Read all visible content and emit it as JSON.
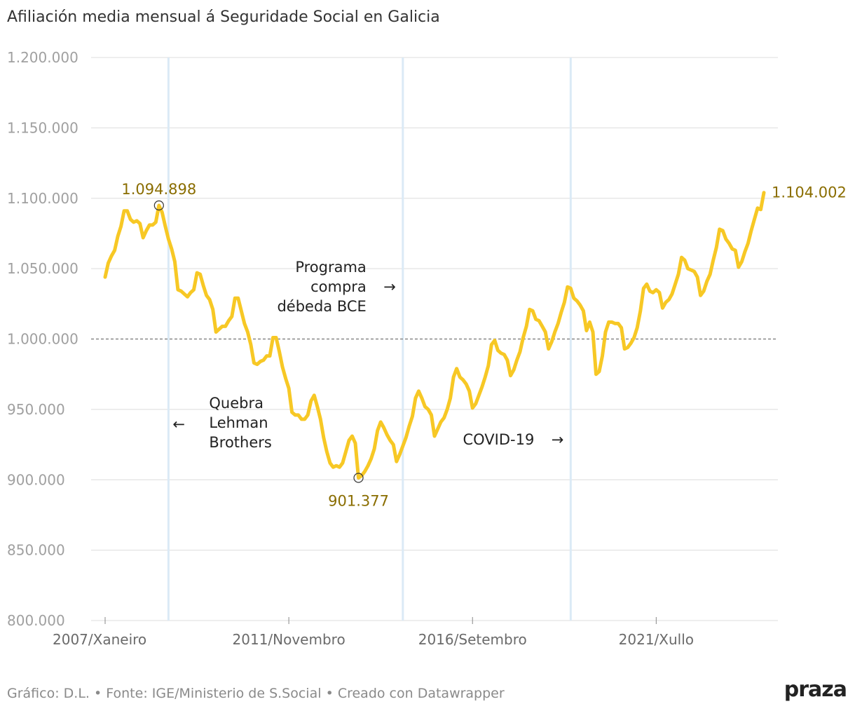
{
  "title": "Afiliación media mensual á Seguridade Social en Galicia",
  "footer": {
    "credit": "Gráfico: D.L.",
    "source": "Fonte: IGE/Ministerio de S.Social",
    "tool": "Creado con Datawrapper",
    "separator": "•"
  },
  "logo": "praza",
  "colors": {
    "line": "#F7C825",
    "event_line": "#dbeaf6",
    "grid": "#e3e3e3",
    "reference": "#888888",
    "value_label": "#8a6d00"
  },
  "chart_data": {
    "type": "line",
    "title": "Afiliación media mensual á Seguridade Social en Galicia",
    "xlabel": "",
    "ylabel": "",
    "ylim": [
      800000,
      1200000
    ],
    "yticks": [
      800000,
      850000,
      900000,
      950000,
      1000000,
      1050000,
      1100000,
      1150000,
      1200000
    ],
    "ytick_labels": [
      "800.000",
      "850.000",
      "900.000",
      "950.000",
      "1.000.000",
      "1.050.000",
      "1.100.000",
      "1.150.000",
      "1.200.000"
    ],
    "x_index_range": [
      0,
      208
    ],
    "xticks": [
      {
        "index": 0,
        "label": "2007/Xaneiro"
      },
      {
        "index": 58,
        "label": "2011/Novembro"
      },
      {
        "index": 116,
        "label": "2016/Setembro"
      },
      {
        "index": 174,
        "label": "2021/Xullo"
      }
    ],
    "reference_line": 1000000,
    "events": [
      {
        "index": 20,
        "label": [
          "Quebra",
          "Lehman",
          "Brothers"
        ],
        "arrow": "←",
        "side": "right"
      },
      {
        "index": 94,
        "label": [
          "Programa",
          "compra",
          "débeda BCE"
        ],
        "arrow": "→",
        "side": "left"
      },
      {
        "index": 147,
        "label": [
          "COVID-19"
        ],
        "arrow": "→",
        "side": "left"
      }
    ],
    "highlights": [
      {
        "index": 17,
        "value": 1094898,
        "label": "1.094.898",
        "position": "above",
        "marker": true
      },
      {
        "index": 80,
        "value": 901377,
        "label": "901.377",
        "position": "below",
        "marker": true
      },
      {
        "index": 208,
        "value": 1104002,
        "label": "1.104.002",
        "position": "right",
        "marker": false
      }
    ],
    "series": [
      {
        "name": "Afiliación media mensual",
        "points": [
          [
            0,
            1044000
          ],
          [
            1,
            1054000
          ],
          [
            2,
            1059000
          ],
          [
            3,
            1063000
          ],
          [
            4,
            1073000
          ],
          [
            5,
            1080000
          ],
          [
            6,
            1091000
          ],
          [
            7,
            1091000
          ],
          [
            8,
            1085000
          ],
          [
            9,
            1083000
          ],
          [
            10,
            1084000
          ],
          [
            11,
            1082000
          ],
          [
            12,
            1072000
          ],
          [
            13,
            1077000
          ],
          [
            14,
            1081000
          ],
          [
            15,
            1081000
          ],
          [
            16,
            1083000
          ],
          [
            17,
            1094898
          ],
          [
            18,
            1090000
          ],
          [
            19,
            1080000
          ],
          [
            20,
            1071000
          ],
          [
            21,
            1064000
          ],
          [
            22,
            1055000
          ],
          [
            23,
            1035000
          ],
          [
            24,
            1034000
          ],
          [
            25,
            1032000
          ],
          [
            26,
            1030000
          ],
          [
            27,
            1033000
          ],
          [
            28,
            1035000
          ],
          [
            29,
            1047000
          ],
          [
            30,
            1046000
          ],
          [
            31,
            1038000
          ],
          [
            32,
            1031000
          ],
          [
            33,
            1028000
          ],
          [
            34,
            1021000
          ],
          [
            35,
            1005000
          ],
          [
            36,
            1007000
          ],
          [
            37,
            1009000
          ],
          [
            38,
            1009000
          ],
          [
            39,
            1013000
          ],
          [
            40,
            1016000
          ],
          [
            41,
            1029000
          ],
          [
            42,
            1029000
          ],
          [
            43,
            1020000
          ],
          [
            44,
            1011000
          ],
          [
            45,
            1005000
          ],
          [
            46,
            996000
          ],
          [
            47,
            983000
          ],
          [
            48,
            982000
          ],
          [
            49,
            984000
          ],
          [
            50,
            985000
          ],
          [
            51,
            988000
          ],
          [
            52,
            988000
          ],
          [
            53,
            1001000
          ],
          [
            54,
            1001000
          ],
          [
            55,
            991000
          ],
          [
            56,
            980000
          ],
          [
            57,
            972000
          ],
          [
            58,
            965000
          ],
          [
            59,
            948000
          ],
          [
            60,
            946000
          ],
          [
            61,
            946000
          ],
          [
            62,
            943000
          ],
          [
            63,
            943000
          ],
          [
            64,
            946000
          ],
          [
            65,
            956000
          ],
          [
            66,
            960000
          ],
          [
            67,
            952000
          ],
          [
            68,
            943000
          ],
          [
            69,
            930000
          ],
          [
            70,
            920000
          ],
          [
            71,
            912000
          ],
          [
            72,
            909000
          ],
          [
            73,
            910000
          ],
          [
            74,
            909000
          ],
          [
            75,
            912000
          ],
          [
            76,
            920000
          ],
          [
            77,
            928000
          ],
          [
            78,
            931000
          ],
          [
            79,
            926000
          ],
          [
            80,
            901377
          ],
          [
            81,
            903000
          ],
          [
            82,
            906000
          ],
          [
            83,
            910000
          ],
          [
            84,
            915000
          ],
          [
            85,
            922000
          ],
          [
            86,
            935000
          ],
          [
            87,
            941000
          ],
          [
            88,
            937000
          ],
          [
            89,
            932000
          ],
          [
            90,
            928000
          ],
          [
            91,
            925000
          ],
          [
            92,
            913000
          ],
          [
            93,
            918000
          ],
          [
            94,
            924000
          ],
          [
            95,
            930000
          ],
          [
            96,
            938000
          ],
          [
            97,
            945000
          ],
          [
            98,
            958000
          ],
          [
            99,
            963000
          ],
          [
            100,
            958000
          ],
          [
            101,
            952000
          ],
          [
            102,
            950000
          ],
          [
            103,
            946000
          ],
          [
            104,
            931000
          ],
          [
            105,
            936000
          ],
          [
            106,
            941000
          ],
          [
            107,
            944000
          ],
          [
            108,
            950000
          ],
          [
            109,
            958000
          ],
          [
            110,
            973000
          ],
          [
            111,
            979000
          ],
          [
            112,
            973000
          ],
          [
            113,
            971000
          ],
          [
            114,
            968000
          ],
          [
            115,
            963000
          ],
          [
            116,
            951000
          ],
          [
            117,
            954000
          ],
          [
            118,
            960000
          ],
          [
            119,
            966000
          ],
          [
            120,
            973000
          ],
          [
            121,
            981000
          ],
          [
            122,
            996000
          ],
          [
            123,
            999000
          ],
          [
            124,
            992000
          ],
          [
            125,
            990000
          ],
          [
            126,
            989000
          ],
          [
            127,
            985000
          ],
          [
            128,
            974000
          ],
          [
            129,
            978000
          ],
          [
            130,
            985000
          ],
          [
            131,
            991000
          ],
          [
            132,
            1001000
          ],
          [
            133,
            1009000
          ],
          [
            134,
            1021000
          ],
          [
            135,
            1020000
          ],
          [
            136,
            1014000
          ],
          [
            137,
            1013000
          ],
          [
            138,
            1009000
          ],
          [
            139,
            1005000
          ],
          [
            140,
            993000
          ],
          [
            141,
            998000
          ],
          [
            142,
            1005000
          ],
          [
            143,
            1011000
          ],
          [
            144,
            1019000
          ],
          [
            145,
            1026000
          ],
          [
            146,
            1037000
          ],
          [
            147,
            1036000
          ],
          [
            148,
            1029000
          ],
          [
            149,
            1027000
          ],
          [
            150,
            1024000
          ],
          [
            151,
            1020000
          ],
          [
            152,
            1006000
          ],
          [
            153,
            1012000
          ],
          [
            154,
            1005000
          ],
          [
            155,
            975000
          ],
          [
            156,
            977000
          ],
          [
            157,
            988000
          ],
          [
            158,
            1005000
          ],
          [
            159,
            1012000
          ],
          [
            160,
            1012000
          ],
          [
            161,
            1011000
          ],
          [
            162,
            1011000
          ],
          [
            163,
            1008000
          ],
          [
            164,
            993000
          ],
          [
            165,
            994000
          ],
          [
            166,
            997000
          ],
          [
            167,
            1001000
          ],
          [
            168,
            1008000
          ],
          [
            169,
            1020000
          ],
          [
            170,
            1036000
          ],
          [
            171,
            1039000
          ],
          [
            172,
            1034000
          ],
          [
            173,
            1033000
          ],
          [
            174,
            1035000
          ],
          [
            175,
            1033000
          ],
          [
            176,
            1022000
          ],
          [
            177,
            1026000
          ],
          [
            178,
            1028000
          ],
          [
            179,
            1032000
          ],
          [
            180,
            1039000
          ],
          [
            181,
            1046000
          ],
          [
            182,
            1058000
          ],
          [
            183,
            1056000
          ],
          [
            184,
            1050000
          ],
          [
            185,
            1049000
          ],
          [
            186,
            1048000
          ],
          [
            187,
            1044000
          ],
          [
            188,
            1031000
          ],
          [
            189,
            1034000
          ],
          [
            190,
            1041000
          ],
          [
            191,
            1046000
          ],
          [
            192,
            1056000
          ],
          [
            193,
            1065000
          ],
          [
            194,
            1078000
          ],
          [
            195,
            1077000
          ],
          [
            196,
            1071000
          ],
          [
            197,
            1068000
          ],
          [
            198,
            1064000
          ],
          [
            199,
            1063000
          ],
          [
            200,
            1051000
          ],
          [
            201,
            1055000
          ],
          [
            202,
            1062000
          ],
          [
            203,
            1068000
          ],
          [
            204,
            1077000
          ],
          [
            205,
            1085000
          ],
          [
            206,
            1093000
          ],
          [
            207,
            1092000
          ],
          [
            208,
            1104002
          ]
        ]
      }
    ]
  }
}
